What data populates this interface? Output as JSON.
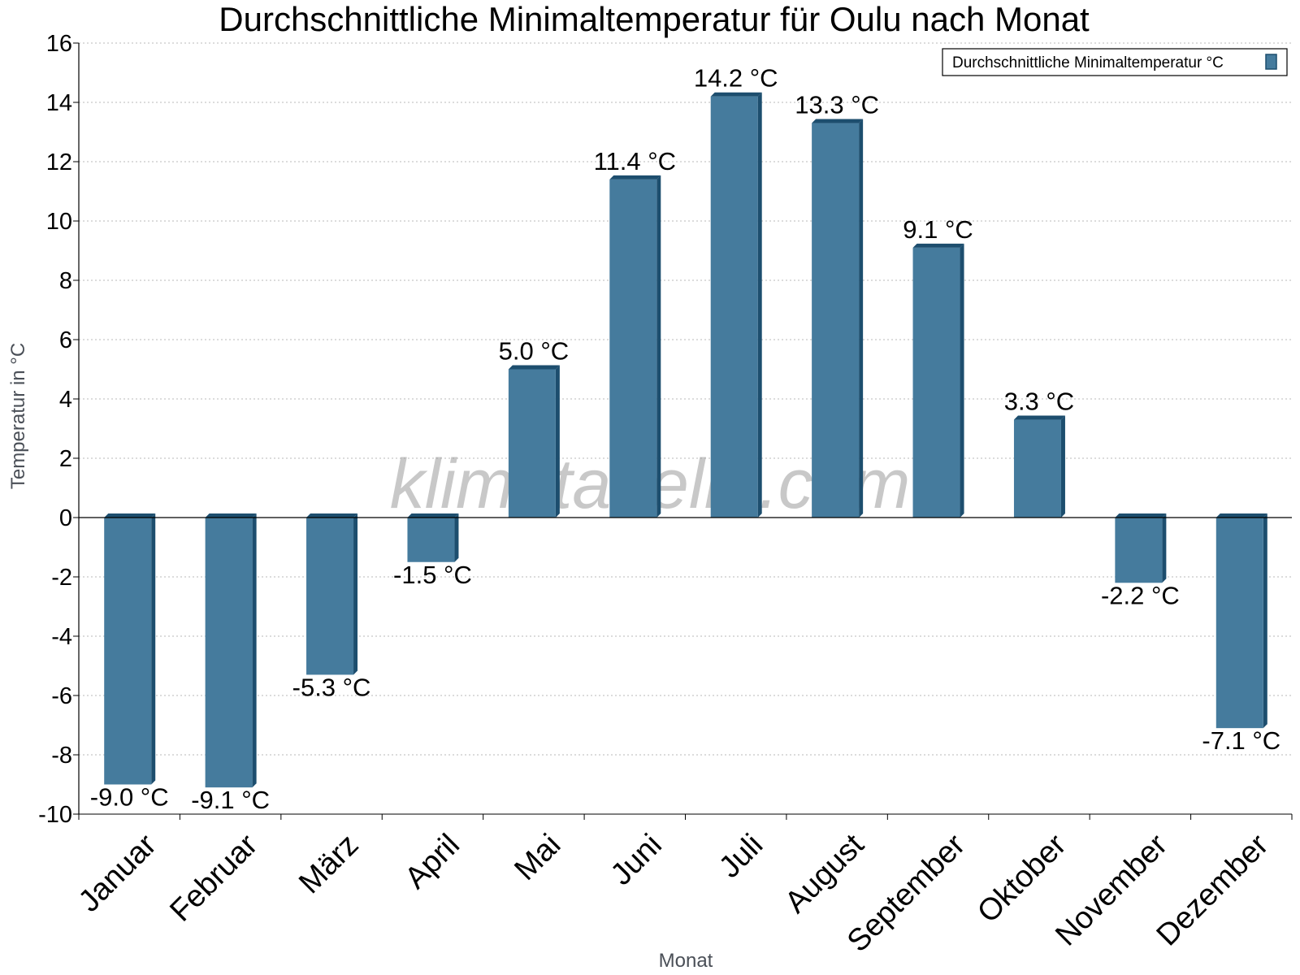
{
  "chart_data": {
    "type": "bar",
    "title": "Durchschnittliche Minimaltemperatur für Oulu nach Monat",
    "xlabel": "Monat",
    "ylabel": "Temperatur in °C",
    "categories": [
      "Januar",
      "Februar",
      "März",
      "April",
      "Mai",
      "Juni",
      "Juli",
      "August",
      "September",
      "Oktober",
      "November",
      "Dezember"
    ],
    "series": [
      {
        "name": "Durchschnittliche Minimaltemperatur °C",
        "values": [
          -9.0,
          -9.1,
          -5.3,
          -1.5,
          5.0,
          11.4,
          14.2,
          13.3,
          9.1,
          3.3,
          -2.2,
          -7.1
        ],
        "labels": [
          "-9.0 °C",
          "-9.1 °C",
          "-5.3 °C",
          "-1.5 °C",
          "5.0 °C",
          "11.4 °C",
          "14.2 °C",
          "13.3 °C",
          "9.1 °C",
          "3.3 °C",
          "-2.2 °C",
          "-7.1 °C"
        ]
      }
    ],
    "ylim": [
      -10,
      16
    ],
    "yticks": [
      "-10",
      "-8",
      "-6",
      "-4",
      "-2",
      "0",
      "2",
      "4",
      "6",
      "8",
      "10",
      "12",
      "14",
      "16"
    ],
    "grid": true,
    "legend_position": "top-right",
    "colors": {
      "bar_front": "#457b9d",
      "bar_side": "#1d4e6e",
      "grid": "#b8b8b8",
      "axis": "#000000"
    }
  },
  "watermark": "klimatabelle.com"
}
